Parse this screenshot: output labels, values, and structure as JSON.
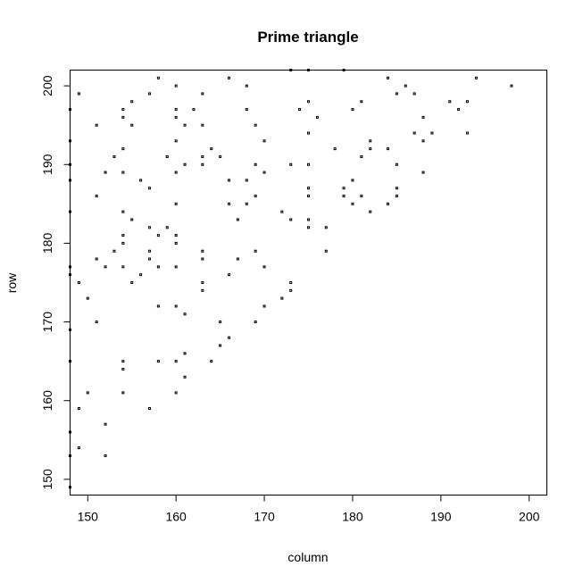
{
  "chart_data": {
    "type": "scatter",
    "title": "Prime triangle",
    "xlabel": "column",
    "ylabel": "row",
    "xlim": [
      148,
      202
    ],
    "ylim": [
      148,
      202
    ],
    "xticks": [
      150,
      160,
      170,
      180,
      190,
      200
    ],
    "yticks": [
      150,
      160,
      170,
      180,
      190,
      200
    ],
    "grid": false,
    "points": [
      [
        148,
        149
      ],
      [
        148,
        153
      ],
      [
        148,
        156
      ],
      [
        148,
        165
      ],
      [
        148,
        169
      ],
      [
        148,
        176
      ],
      [
        148,
        177
      ],
      [
        148,
        184
      ],
      [
        148,
        188
      ],
      [
        148,
        190
      ],
      [
        148,
        193
      ],
      [
        148,
        197
      ],
      [
        149,
        154
      ],
      [
        149,
        159
      ],
      [
        149,
        175
      ],
      [
        149,
        199
      ],
      [
        150,
        161
      ],
      [
        150,
        173
      ],
      [
        151,
        170
      ],
      [
        151,
        178
      ],
      [
        151,
        186
      ],
      [
        151,
        195
      ],
      [
        152,
        153
      ],
      [
        152,
        157
      ],
      [
        152,
        177
      ],
      [
        152,
        189
      ],
      [
        153,
        179
      ],
      [
        153,
        191
      ],
      [
        154,
        161
      ],
      [
        154,
        164
      ],
      [
        154,
        165
      ],
      [
        154,
        177
      ],
      [
        154,
        180
      ],
      [
        154,
        181
      ],
      [
        154,
        184
      ],
      [
        154,
        189
      ],
      [
        154,
        192
      ],
      [
        154,
        196
      ],
      [
        154,
        197
      ],
      [
        155,
        175
      ],
      [
        155,
        183
      ],
      [
        155,
        195
      ],
      [
        155,
        198
      ],
      [
        156,
        176
      ],
      [
        156,
        188
      ],
      [
        157,
        159
      ],
      [
        157,
        178
      ],
      [
        157,
        179
      ],
      [
        157,
        182
      ],
      [
        157,
        187
      ],
      [
        157,
        199
      ],
      [
        158,
        165
      ],
      [
        158,
        172
      ],
      [
        158,
        177
      ],
      [
        158,
        181
      ],
      [
        158,
        201
      ],
      [
        159,
        182
      ],
      [
        159,
        191
      ],
      [
        160,
        161
      ],
      [
        160,
        165
      ],
      [
        160,
        172
      ],
      [
        160,
        177
      ],
      [
        160,
        180
      ],
      [
        160,
        181
      ],
      [
        160,
        185
      ],
      [
        160,
        189
      ],
      [
        160,
        193
      ],
      [
        160,
        196
      ],
      [
        160,
        197
      ],
      [
        160,
        200
      ],
      [
        161,
        163
      ],
      [
        161,
        166
      ],
      [
        161,
        171
      ],
      [
        161,
        190
      ],
      [
        161,
        195
      ],
      [
        162,
        197
      ],
      [
        163,
        174
      ],
      [
        163,
        175
      ],
      [
        163,
        178
      ],
      [
        163,
        179
      ],
      [
        163,
        190
      ],
      [
        163,
        191
      ],
      [
        163,
        195
      ],
      [
        163,
        199
      ],
      [
        164,
        165
      ],
      [
        164,
        192
      ],
      [
        165,
        167
      ],
      [
        165,
        170
      ],
      [
        165,
        191
      ],
      [
        166,
        168
      ],
      [
        166,
        176
      ],
      [
        166,
        185
      ],
      [
        166,
        188
      ],
      [
        166,
        201
      ],
      [
        167,
        178
      ],
      [
        167,
        183
      ],
      [
        168,
        185
      ],
      [
        168,
        188
      ],
      [
        168,
        197
      ],
      [
        168,
        200
      ],
      [
        169,
        170
      ],
      [
        169,
        179
      ],
      [
        169,
        186
      ],
      [
        169,
        190
      ],
      [
        169,
        195
      ],
      [
        170,
        172
      ],
      [
        170,
        177
      ],
      [
        170,
        189
      ],
      [
        170,
        193
      ],
      [
        172,
        173
      ],
      [
        172,
        184
      ],
      [
        173,
        174
      ],
      [
        173,
        175
      ],
      [
        173,
        183
      ],
      [
        173,
        190
      ],
      [
        173,
        202
      ],
      [
        174,
        197
      ],
      [
        175,
        182
      ],
      [
        175,
        183
      ],
      [
        175,
        186
      ],
      [
        175,
        187
      ],
      [
        175,
        190
      ],
      [
        175,
        194
      ],
      [
        175,
        198
      ],
      [
        175,
        202
      ],
      [
        176,
        196
      ],
      [
        177,
        179
      ],
      [
        177,
        182
      ],
      [
        178,
        192
      ],
      [
        179,
        186
      ],
      [
        179,
        187
      ],
      [
        179,
        202
      ],
      [
        180,
        185
      ],
      [
        180,
        188
      ],
      [
        180,
        197
      ],
      [
        181,
        186
      ],
      [
        181,
        191
      ],
      [
        181,
        198
      ],
      [
        182,
        184
      ],
      [
        182,
        192
      ],
      [
        182,
        193
      ],
      [
        184,
        185
      ],
      [
        184,
        192
      ],
      [
        184,
        201
      ],
      [
        185,
        186
      ],
      [
        185,
        187
      ],
      [
        185,
        190
      ],
      [
        185,
        199
      ],
      [
        186,
        200
      ],
      [
        187,
        194
      ],
      [
        187,
        199
      ],
      [
        188,
        189
      ],
      [
        188,
        193
      ],
      [
        188,
        196
      ],
      [
        189,
        194
      ],
      [
        191,
        198
      ],
      [
        192,
        197
      ],
      [
        193,
        194
      ],
      [
        193,
        198
      ],
      [
        194,
        201
      ],
      [
        198,
        200
      ]
    ]
  }
}
